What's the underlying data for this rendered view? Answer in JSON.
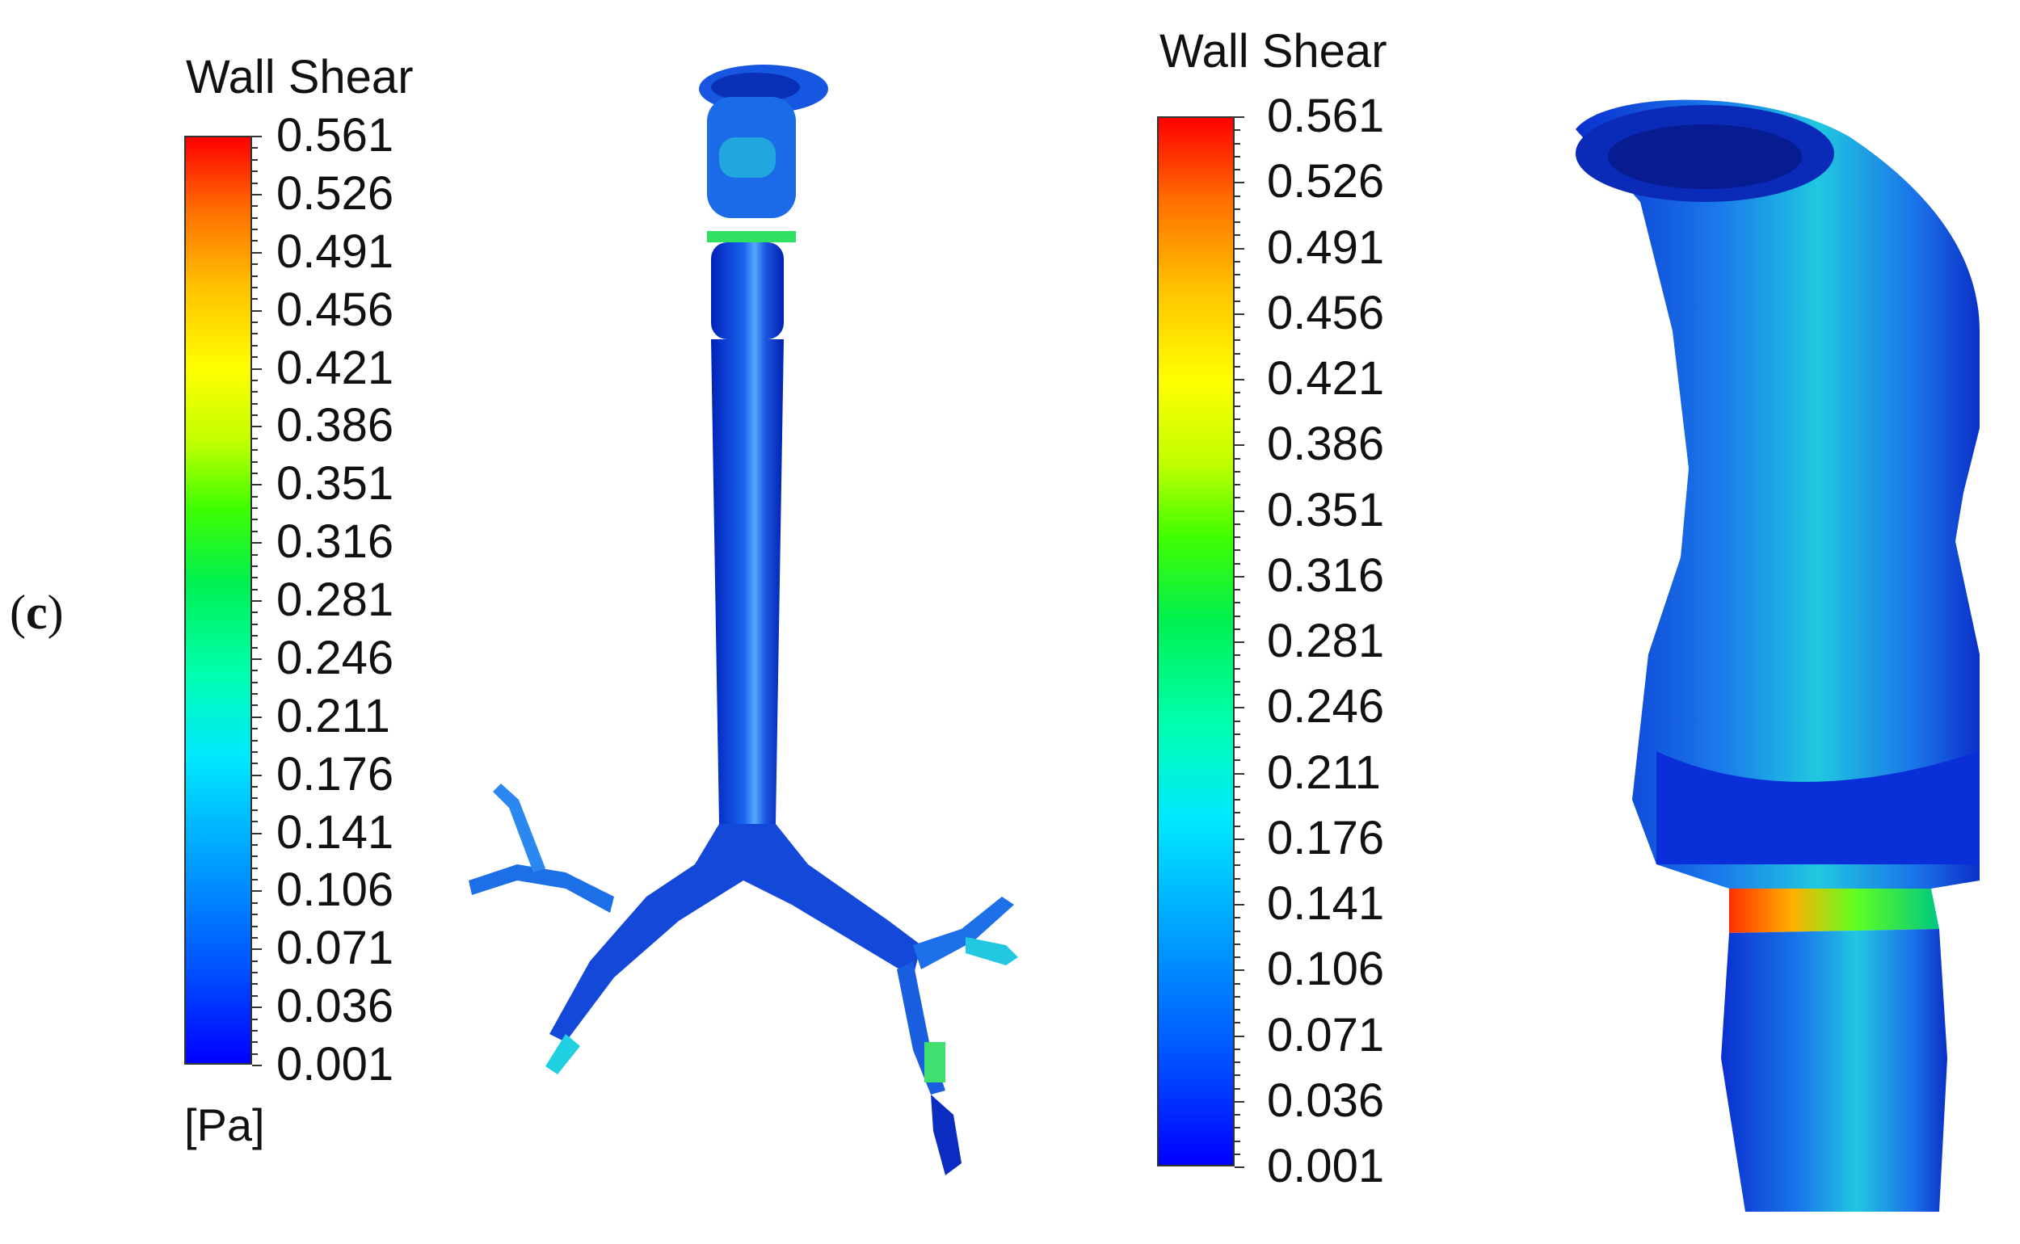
{
  "panel_label": {
    "open": "(",
    "letter": "c",
    "close": ")"
  },
  "legend_left": {
    "title": "Wall Shear",
    "unit": "[Pa]",
    "ticks": [
      "0.561",
      "0.526",
      "0.491",
      "0.456",
      "0.421",
      "0.386",
      "0.351",
      "0.316",
      "0.281",
      "0.246",
      "0.211",
      "0.176",
      "0.141",
      "0.106",
      "0.071",
      "0.036",
      "0.001"
    ]
  },
  "legend_right": {
    "title": "Wall Shear",
    "ticks": [
      "0.561",
      "0.526",
      "0.491",
      "0.456",
      "0.421",
      "0.386",
      "0.351",
      "0.316",
      "0.281",
      "0.246",
      "0.211",
      "0.176",
      "0.141",
      "0.106",
      "0.071",
      "0.036",
      "0.001"
    ]
  },
  "colors": {
    "low": "#0000ff",
    "mid": "#00ff80",
    "high": "#ff0000",
    "body": "#0a3cd8"
  }
}
